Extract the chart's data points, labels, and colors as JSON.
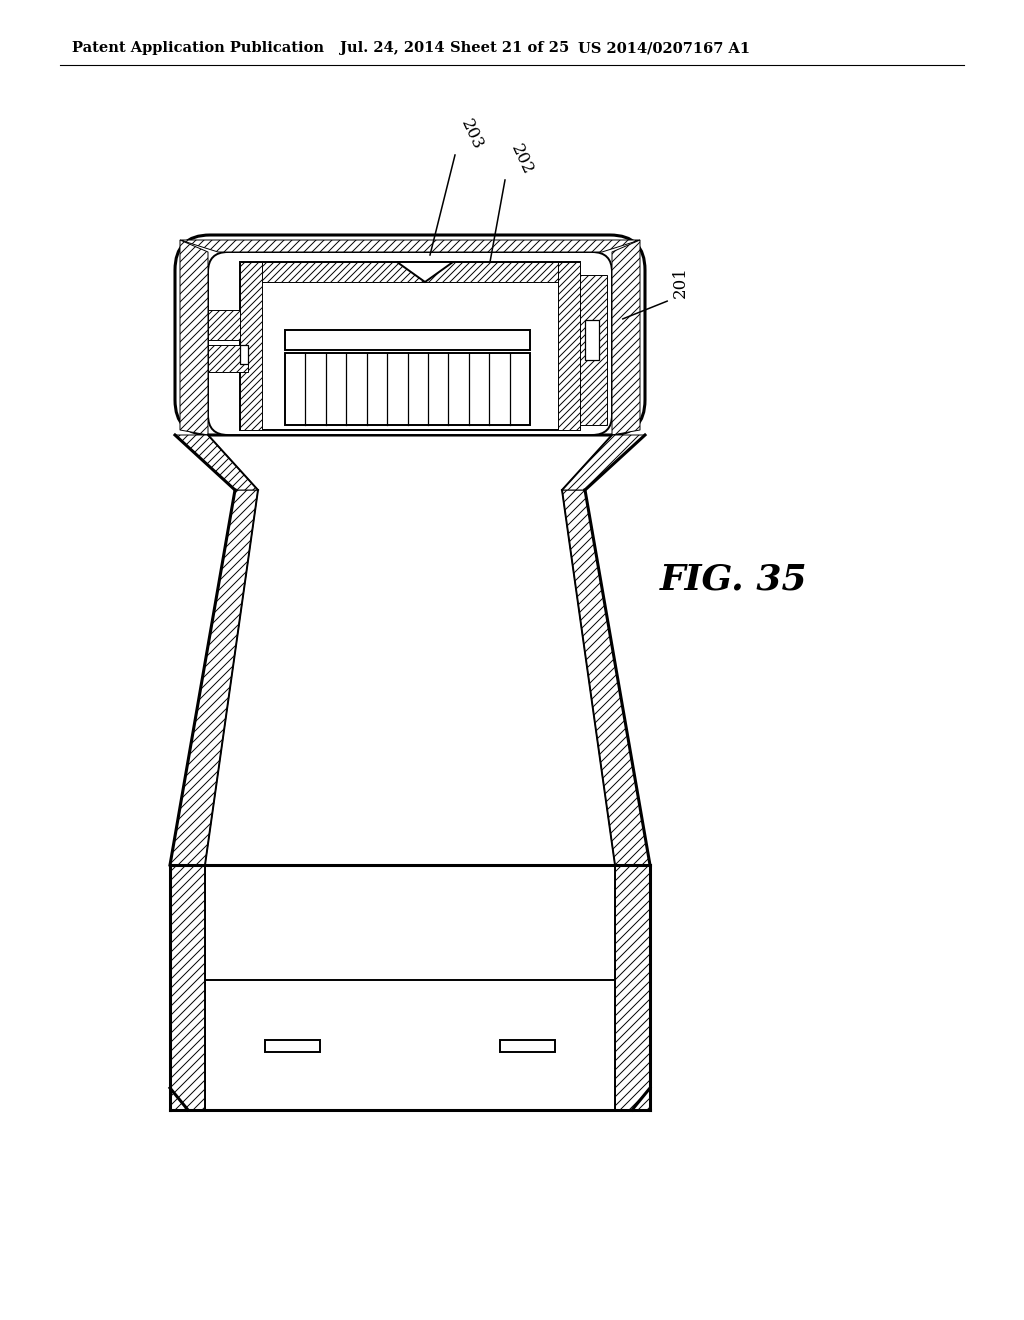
{
  "bg_color": "#ffffff",
  "line_color": "#000000",
  "title_text": "Patent Application Publication",
  "date_text": "Jul. 24, 2014",
  "sheet_text": "Sheet 21 of 25",
  "patent_text": "US 2014/0207167 A1",
  "fig_label": "FIG. 35",
  "ref_201": "201",
  "ref_202": "202",
  "ref_203": "203",
  "header_fontsize": 10.5,
  "fig_label_fontsize": 26
}
